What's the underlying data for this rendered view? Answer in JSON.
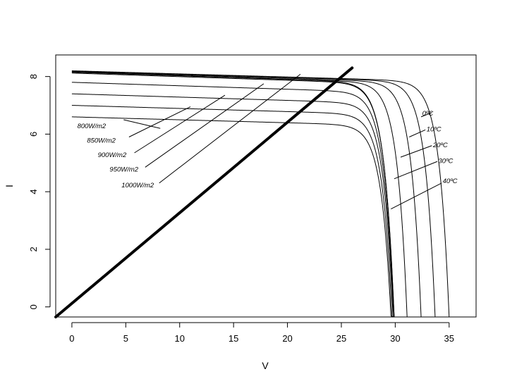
{
  "chart_data": {
    "type": "line",
    "title": "",
    "xlabel": "V",
    "ylabel": "I",
    "xlim": [
      -1.5,
      37.5
    ],
    "ylim": [
      -0.35,
      8.75
    ],
    "xticks": [
      0,
      5,
      10,
      15,
      20,
      25,
      30,
      35
    ],
    "yticks": [
      0,
      2,
      4,
      6,
      8
    ],
    "grid": false,
    "irradiance_series": [
      {
        "label": "800W/m2",
        "isc": 6.6,
        "voc": 29.6,
        "label_at": [
          0.5,
          6.2
        ],
        "leader": [
          [
            4.8,
            6.5
          ],
          [
            8.2,
            6.2
          ]
        ]
      },
      {
        "label": "850W/m2",
        "isc": 7.0,
        "voc": 29.7,
        "label_at": [
          1.4,
          5.7
        ],
        "leader": [
          [
            5.3,
            5.9
          ],
          [
            11.0,
            6.95
          ]
        ]
      },
      {
        "label": "900W/m2",
        "isc": 7.4,
        "voc": 29.8,
        "label_at": [
          2.4,
          5.2
        ],
        "leader": [
          [
            5.8,
            5.35
          ],
          [
            14.2,
            7.35
          ]
        ]
      },
      {
        "label": "950W/m2",
        "isc": 7.8,
        "voc": 29.85,
        "label_at": [
          3.5,
          4.7
        ],
        "leader": [
          [
            6.8,
            4.85
          ],
          [
            17.8,
            7.75
          ]
        ]
      },
      {
        "label": "1000W/m2",
        "isc": 8.15,
        "voc": 29.9,
        "label_at": [
          4.6,
          4.15
        ],
        "leader": [
          [
            8.1,
            4.3
          ],
          [
            21.2,
            8.08
          ]
        ]
      }
    ],
    "temperature_series": [
      {
        "label": "0ºC",
        "isc": 8.2,
        "voc": 35.0,
        "label_at": [
          32.5,
          6.65
        ],
        "leader": [
          [
            32.4,
            6.6
          ],
          [
            33.4,
            6.75
          ]
        ]
      },
      {
        "label": "10ºC",
        "isc": 8.19,
        "voc": 33.7,
        "label_at": [
          32.9,
          6.1
        ],
        "leader": [
          [
            31.3,
            5.9
          ],
          [
            32.8,
            6.15
          ]
        ]
      },
      {
        "label": "20ºC",
        "isc": 8.17,
        "voc": 32.4,
        "label_at": [
          33.5,
          5.55
        ],
        "leader": [
          [
            30.5,
            5.2
          ],
          [
            33.4,
            5.6
          ]
        ]
      },
      {
        "label": "30ºC",
        "isc": 8.15,
        "voc": 31.1,
        "label_at": [
          34.0,
          5.0
        ],
        "leader": [
          [
            29.9,
            4.45
          ],
          [
            33.9,
            5.05
          ]
        ]
      },
      {
        "label": "40ºC",
        "isc": 8.12,
        "voc": 29.9,
        "label_at": [
          34.4,
          4.3
        ],
        "leader": [
          [
            29.6,
            3.4
          ],
          [
            34.3,
            4.3
          ]
        ]
      }
    ],
    "load_line": {
      "x": [
        -1.5,
        26.0
      ],
      "y": [
        -0.35,
        8.3
      ]
    }
  }
}
